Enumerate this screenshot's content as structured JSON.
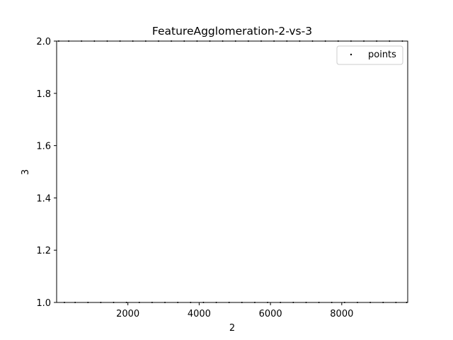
{
  "chart_data": {
    "type": "scatter",
    "title": "FeatureAgglomeration-2-vs-3",
    "xlabel": "2",
    "ylabel": "3",
    "xlim": [
      1,
      9850
    ],
    "ylim": [
      1.0,
      2.0
    ],
    "xticks": [
      2000,
      4000,
      6000,
      8000
    ],
    "xtick_labels": [
      "2000",
      "4000",
      "6000",
      "8000"
    ],
    "yticks": [
      1.0,
      1.2,
      1.4,
      1.6,
      1.8,
      2.0
    ],
    "ytick_labels": [
      "1.0",
      "1.2",
      "1.4",
      "1.6",
      "1.8",
      "2.0"
    ],
    "grid": false,
    "legend": {
      "placement": "top-right",
      "entries": [
        "points"
      ]
    },
    "series": [
      {
        "name": "points",
        "color": "#000000",
        "marker": "point",
        "points": [
          [
            60,
            2.0
          ],
          [
            220,
            1.0
          ],
          [
            340,
            2.0
          ],
          [
            520,
            1.0
          ],
          [
            700,
            2.0
          ],
          [
            880,
            1.0
          ],
          [
            1060,
            2.0
          ],
          [
            1240,
            1.0
          ],
          [
            1420,
            2.0
          ],
          [
            1600,
            1.0
          ],
          [
            1780,
            2.0
          ],
          [
            1960,
            1.0
          ],
          [
            2140,
            2.0
          ],
          [
            2320,
            1.0
          ],
          [
            2500,
            2.0
          ],
          [
            2680,
            1.0
          ],
          [
            2860,
            2.0
          ],
          [
            3040,
            1.0
          ],
          [
            3220,
            2.0
          ],
          [
            3400,
            1.0
          ],
          [
            3580,
            2.0
          ],
          [
            3760,
            1.0
          ],
          [
            3940,
            2.0
          ],
          [
            4120,
            1.0
          ],
          [
            4300,
            2.0
          ],
          [
            4480,
            1.0
          ],
          [
            4660,
            2.0
          ],
          [
            4840,
            1.0
          ],
          [
            5020,
            2.0
          ],
          [
            5200,
            1.0
          ],
          [
            5380,
            2.0
          ],
          [
            5560,
            1.0
          ],
          [
            5740,
            2.0
          ],
          [
            5920,
            1.0
          ],
          [
            6100,
            2.0
          ],
          [
            6280,
            1.0
          ],
          [
            6460,
            2.0
          ],
          [
            6640,
            1.0
          ],
          [
            6820,
            2.0
          ],
          [
            7000,
            1.0
          ],
          [
            7180,
            2.0
          ],
          [
            7360,
            1.0
          ],
          [
            7540,
            2.0
          ],
          [
            7720,
            1.0
          ],
          [
            7900,
            2.0
          ],
          [
            8080,
            1.0
          ],
          [
            8260,
            2.0
          ],
          [
            8440,
            1.0
          ],
          [
            8620,
            2.0
          ],
          [
            8800,
            1.0
          ],
          [
            8980,
            2.0
          ],
          [
            9160,
            1.0
          ],
          [
            9340,
            2.0
          ],
          [
            9520,
            1.0
          ],
          [
            9700,
            2.0
          ],
          [
            9820,
            1.0
          ]
        ]
      }
    ]
  }
}
